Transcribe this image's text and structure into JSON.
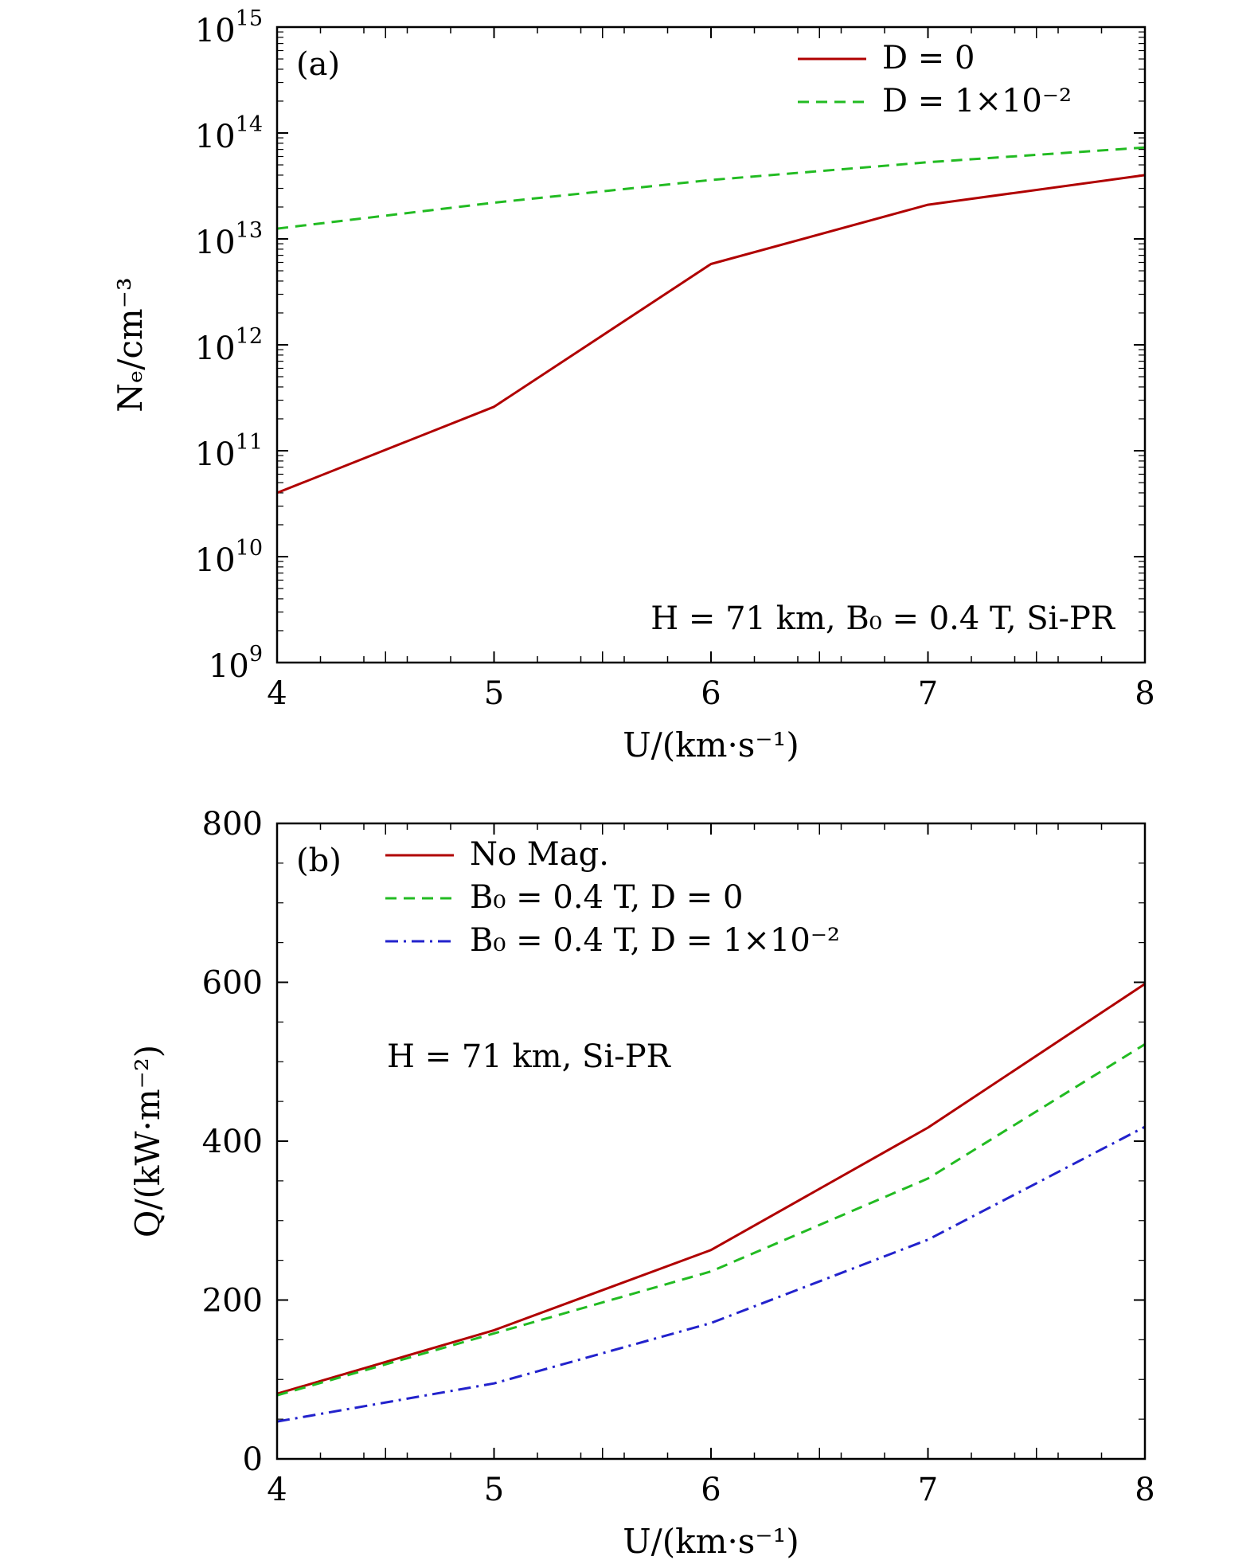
{
  "chart_data": [
    {
      "type": "line",
      "panel": "(a)",
      "xlabel": "U/(km·s⁻¹)",
      "ylabel": "Nₑ/cm⁻³",
      "xlim": [
        4,
        8
      ],
      "ylim": [
        1000000000.0,
        1000000000000000.0
      ],
      "yscale": "log",
      "x_ticks": [
        "4",
        "5",
        "6",
        "7",
        "8"
      ],
      "y_ticks": [
        {
          "base": "10",
          "exp": "9"
        },
        {
          "base": "10",
          "exp": "10"
        },
        {
          "base": "10",
          "exp": "11"
        },
        {
          "base": "10",
          "exp": "12"
        },
        {
          "base": "10",
          "exp": "13"
        },
        {
          "base": "10",
          "exp": "14"
        },
        {
          "base": "10",
          "exp": "15"
        }
      ],
      "annotation": "H = 71 km, B₀ = 0.4 T, Si-PR",
      "legend": "top-right",
      "grid": false,
      "series": [
        {
          "name": "D = 0",
          "color": "#b00000",
          "style": "solid",
          "x": [
            4,
            5,
            6,
            7,
            8
          ],
          "y": [
            40000000000.0,
            260000000000.0,
            5800000000000.0,
            21000000000000.0,
            40000000000000.0
          ]
        },
        {
          "name": "D = 1×10⁻²",
          "color": "#22bb22",
          "style": "dashed",
          "x": [
            4,
            5,
            6,
            7,
            8
          ],
          "y": [
            12500000000000.0,
            22000000000000.0,
            36000000000000.0,
            53000000000000.0,
            73000000000000.0
          ]
        }
      ]
    },
    {
      "type": "line",
      "panel": "(b)",
      "xlabel": "U/(km·s⁻¹)",
      "ylabel": "Q/(kW·m⁻²)",
      "xlim": [
        4,
        8
      ],
      "ylim": [
        0,
        800
      ],
      "yscale": "linear",
      "x_ticks": [
        "4",
        "5",
        "6",
        "7",
        "8"
      ],
      "y_ticks": [
        "0",
        "200",
        "400",
        "600",
        "800"
      ],
      "annotation": "H = 71 km, Si-PR",
      "legend": "top-left",
      "grid": false,
      "series": [
        {
          "name": "No Mag.",
          "color": "#b00000",
          "style": "solid",
          "x": [
            4,
            5,
            6,
            7,
            8
          ],
          "y": [
            82,
            162,
            263,
            417,
            598
          ]
        },
        {
          "name": "B₀ = 0.4 T, D = 0",
          "color": "#22bb22",
          "style": "dashed",
          "x": [
            4,
            5,
            6,
            7,
            8
          ],
          "y": [
            80,
            158,
            236,
            353,
            522
          ]
        },
        {
          "name": "B₀ = 0.4 T, D = 1×10⁻²",
          "color": "#2222cc",
          "style": "dashdot",
          "x": [
            4,
            5,
            6,
            7,
            8
          ],
          "y": [
            47,
            95,
            171,
            276,
            418
          ]
        }
      ]
    }
  ]
}
